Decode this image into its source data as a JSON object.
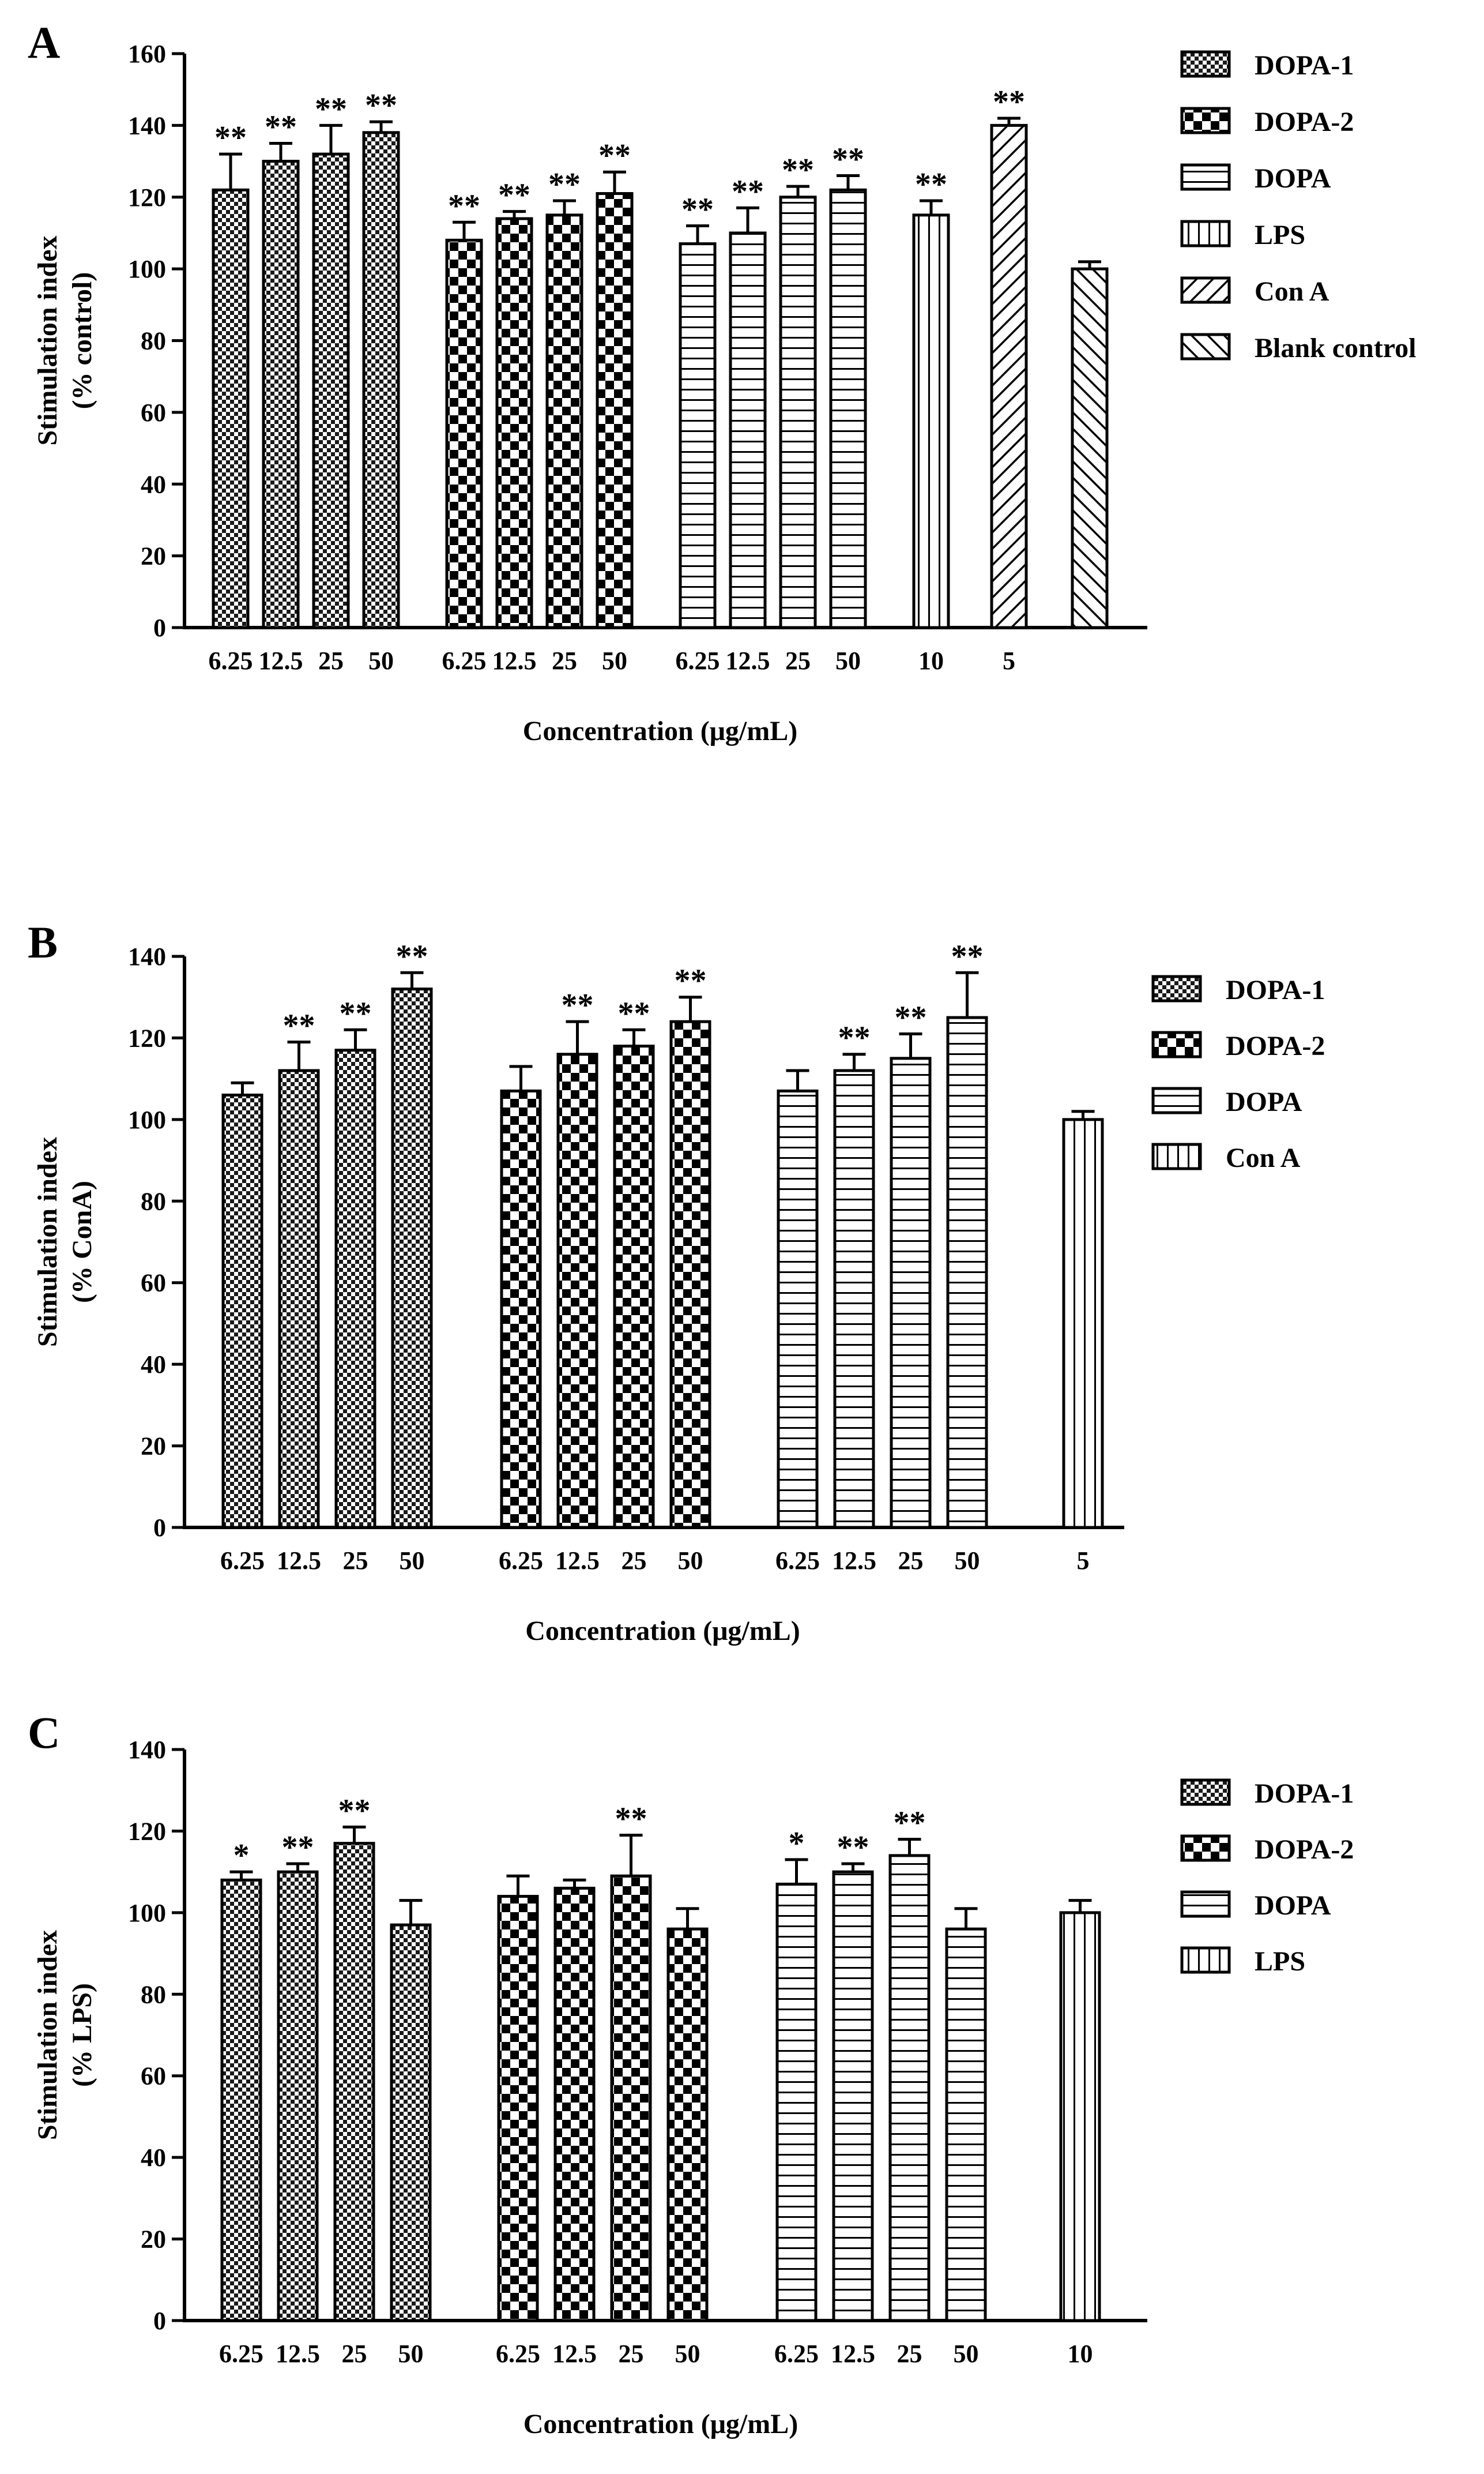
{
  "chart_data": [
    {
      "type": "bar",
      "panel": "A",
      "ylabel": "Stimulation index",
      "ylabel2": "(% control)",
      "xlabel": "Concentration (μg/mL)",
      "ylim": [
        0,
        160
      ],
      "yticks": [
        0,
        20,
        40,
        60,
        80,
        100,
        120,
        140,
        160
      ],
      "legend": [
        {
          "name": "DOPA-1",
          "pattern": "checker-fine"
        },
        {
          "name": "DOPA-2",
          "pattern": "checker-coarse"
        },
        {
          "name": "DOPA",
          "pattern": "hlines"
        },
        {
          "name": "LPS",
          "pattern": "vlines"
        },
        {
          "name": "Con A",
          "pattern": "diag-up"
        },
        {
          "name": "Blank control",
          "pattern": "diag-down"
        }
      ],
      "groups": [
        {
          "series": "DOPA-1",
          "bars": [
            {
              "label": "6.25",
              "value": 122,
              "err": 10,
              "sig": "**"
            },
            {
              "label": "12.5",
              "value": 130,
              "err": 5,
              "sig": "**"
            },
            {
              "label": "25",
              "value": 132,
              "err": 8,
              "sig": "**"
            },
            {
              "label": "50",
              "value": 138,
              "err": 3,
              "sig": "**"
            }
          ]
        },
        {
          "series": "DOPA-2",
          "bars": [
            {
              "label": "6.25",
              "value": 108,
              "err": 5,
              "sig": "**"
            },
            {
              "label": "12.5",
              "value": 114,
              "err": 2,
              "sig": "**"
            },
            {
              "label": "25",
              "value": 115,
              "err": 4,
              "sig": "**"
            },
            {
              "label": "50",
              "value": 121,
              "err": 6,
              "sig": "**"
            }
          ]
        },
        {
          "series": "DOPA",
          "bars": [
            {
              "label": "6.25",
              "value": 107,
              "err": 5,
              "sig": "**"
            },
            {
              "label": "12.5",
              "value": 110,
              "err": 7,
              "sig": "**"
            },
            {
              "label": "25",
              "value": 120,
              "err": 3,
              "sig": "**"
            },
            {
              "label": "50",
              "value": 122,
              "err": 4,
              "sig": "**"
            }
          ]
        },
        {
          "series": "LPS",
          "bars": [
            {
              "label": "10",
              "value": 115,
              "err": 4,
              "sig": "**"
            }
          ]
        },
        {
          "series": "Con A",
          "bars": [
            {
              "label": "5",
              "value": 140,
              "err": 2,
              "sig": "**"
            }
          ]
        },
        {
          "series": "Blank control",
          "bars": [
            {
              "label": "",
              "value": 100,
              "err": 2,
              "sig": ""
            }
          ]
        }
      ]
    },
    {
      "type": "bar",
      "panel": "B",
      "ylabel": "Stimulation index",
      "ylabel2": "(% ConA)",
      "xlabel": "Concentration (μg/mL)",
      "ylim": [
        0,
        140
      ],
      "yticks": [
        0,
        20,
        40,
        60,
        80,
        100,
        120,
        140
      ],
      "legend": [
        {
          "name": "DOPA-1",
          "pattern": "checker-fine"
        },
        {
          "name": "DOPA-2",
          "pattern": "checker-coarse"
        },
        {
          "name": "DOPA",
          "pattern": "hlines"
        },
        {
          "name": "Con A",
          "pattern": "vlines"
        }
      ],
      "groups": [
        {
          "series": "DOPA-1",
          "bars": [
            {
              "label": "6.25",
              "value": 106,
              "err": 3,
              "sig": ""
            },
            {
              "label": "12.5",
              "value": 112,
              "err": 7,
              "sig": "**"
            },
            {
              "label": "25",
              "value": 117,
              "err": 5,
              "sig": "**"
            },
            {
              "label": "50",
              "value": 132,
              "err": 4,
              "sig": "**"
            }
          ]
        },
        {
          "series": "DOPA-2",
          "bars": [
            {
              "label": "6.25",
              "value": 107,
              "err": 6,
              "sig": ""
            },
            {
              "label": "12.5",
              "value": 116,
              "err": 8,
              "sig": "**"
            },
            {
              "label": "25",
              "value": 118,
              "err": 4,
              "sig": "**"
            },
            {
              "label": "50",
              "value": 124,
              "err": 6,
              "sig": "**"
            }
          ]
        },
        {
          "series": "DOPA",
          "bars": [
            {
              "label": "6.25",
              "value": 107,
              "err": 5,
              "sig": ""
            },
            {
              "label": "12.5",
              "value": 112,
              "err": 4,
              "sig": "**"
            },
            {
              "label": "25",
              "value": 115,
              "err": 6,
              "sig": "**"
            },
            {
              "label": "50",
              "value": 125,
              "err": 11,
              "sig": "**"
            }
          ]
        },
        {
          "series": "Con A",
          "bars": [
            {
              "label": "5",
              "value": 100,
              "err": 2,
              "sig": ""
            }
          ]
        }
      ]
    },
    {
      "type": "bar",
      "panel": "C",
      "ylabel": "Stimulation index",
      "ylabel2": "(% LPS)",
      "xlabel": "Concentration (μg/mL)",
      "ylim": [
        0,
        140
      ],
      "yticks": [
        0,
        20,
        40,
        60,
        80,
        100,
        120,
        140
      ],
      "legend": [
        {
          "name": "DOPA-1",
          "pattern": "checker-fine"
        },
        {
          "name": "DOPA-2",
          "pattern": "checker-coarse"
        },
        {
          "name": "DOPA",
          "pattern": "hlines"
        },
        {
          "name": "LPS",
          "pattern": "vlines"
        }
      ],
      "groups": [
        {
          "series": "DOPA-1",
          "bars": [
            {
              "label": "6.25",
              "value": 108,
              "err": 2,
              "sig": "*"
            },
            {
              "label": "12.5",
              "value": 110,
              "err": 2,
              "sig": "**"
            },
            {
              "label": "25",
              "value": 117,
              "err": 4,
              "sig": "**"
            },
            {
              "label": "50",
              "value": 97,
              "err": 6,
              "sig": ""
            }
          ]
        },
        {
          "series": "DOPA-2",
          "bars": [
            {
              "label": "6.25",
              "value": 104,
              "err": 5,
              "sig": ""
            },
            {
              "label": "12.5",
              "value": 106,
              "err": 2,
              "sig": ""
            },
            {
              "label": "25",
              "value": 109,
              "err": 10,
              "sig": "**"
            },
            {
              "label": "50",
              "value": 96,
              "err": 5,
              "sig": ""
            }
          ]
        },
        {
          "series": "DOPA",
          "bars": [
            {
              "label": "6.25",
              "value": 107,
              "err": 6,
              "sig": "*"
            },
            {
              "label": "12.5",
              "value": 110,
              "err": 2,
              "sig": "**"
            },
            {
              "label": "25",
              "value": 114,
              "err": 4,
              "sig": "**"
            },
            {
              "label": "50",
              "value": 96,
              "err": 5,
              "sig": ""
            }
          ]
        },
        {
          "series": "LPS",
          "bars": [
            {
              "label": "10",
              "value": 100,
              "err": 3,
              "sig": ""
            }
          ]
        }
      ]
    }
  ]
}
